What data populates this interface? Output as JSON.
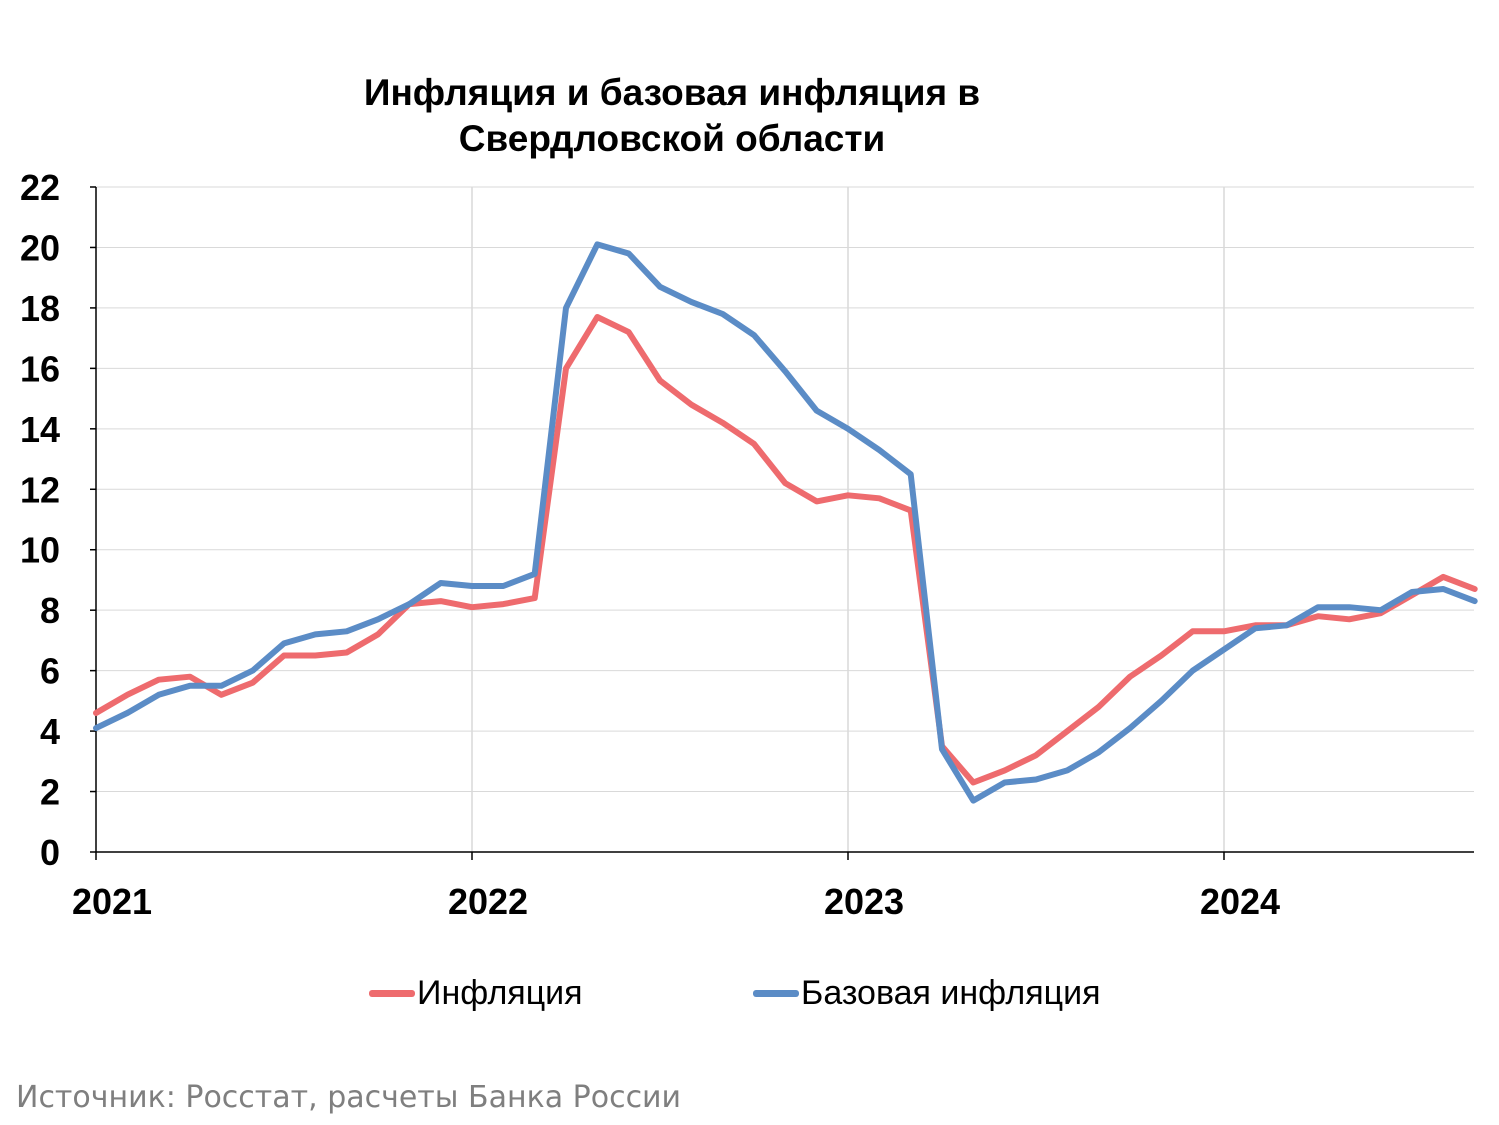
{
  "chart_data": {
    "type": "line",
    "title_line1": "Инфляция и базовая инфляция в",
    "title_line2": "Свердловской области",
    "xlabel": "",
    "ylabel": "",
    "ylim": [
      0,
      22
    ],
    "yticks": [
      0,
      2,
      4,
      6,
      8,
      10,
      12,
      14,
      16,
      18,
      20,
      22
    ],
    "xticks": [
      "2021",
      "2022",
      "2023",
      "2024"
    ],
    "grid": true,
    "legend_position": "bottom",
    "x_start": "2021-01",
    "x_frequency": "monthly",
    "series": [
      {
        "name": "Инфляция",
        "color": "#ee6b6e",
        "values": [
          4.6,
          5.2,
          5.7,
          5.8,
          5.2,
          5.6,
          6.5,
          6.5,
          6.6,
          7.2,
          8.2,
          8.3,
          8.1,
          8.2,
          8.4,
          16.0,
          17.7,
          17.2,
          15.6,
          14.8,
          14.2,
          13.5,
          12.2,
          11.6,
          11.8,
          11.7,
          11.3,
          3.5,
          2.3,
          2.7,
          3.2,
          4.0,
          4.8,
          5.8,
          6.5,
          7.3,
          7.3,
          7.5,
          7.5,
          7.8,
          7.7,
          7.9,
          8.5,
          9.1,
          8.7
        ]
      },
      {
        "name": "Базовая инфляция",
        "color": "#5b8cc6",
        "values": [
          4.1,
          4.6,
          5.2,
          5.5,
          5.5,
          6.0,
          6.9,
          7.2,
          7.3,
          7.7,
          8.2,
          8.9,
          8.8,
          8.8,
          9.2,
          18.0,
          20.1,
          19.8,
          18.7,
          18.2,
          17.8,
          17.1,
          15.9,
          14.6,
          14.0,
          13.3,
          12.5,
          3.4,
          1.7,
          2.3,
          2.4,
          2.7,
          3.3,
          4.1,
          5.0,
          6.0,
          6.7,
          7.4,
          7.5,
          8.1,
          8.1,
          8.0,
          8.6,
          8.7,
          8.3
        ]
      }
    ]
  },
  "source": "Источник: Росстат, расчеты Банка России"
}
